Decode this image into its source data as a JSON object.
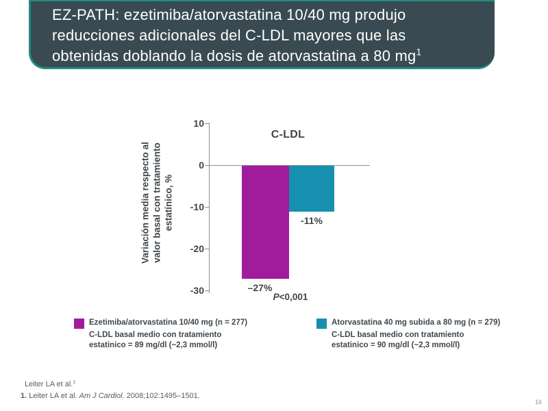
{
  "slide": {
    "page_number": "16"
  },
  "header": {
    "title_line1": "EZ-PATH: ezetimiba/atorvastatina 10/40 mg produjo",
    "title_line2": "reducciones adicionales del C-LDL mayores que las",
    "title_line3": "obtenidas doblando la dosis de atorvastatina a 80 mg",
    "title_superscript": "1"
  },
  "chart_data": {
    "type": "bar",
    "title": "C-LDL",
    "ylabel": "Variación media respecto al\nvalor basal con tratamiento\nestatínico, %",
    "ylim": [
      -30,
      10
    ],
    "yticks": [
      10,
      0,
      -10,
      -20,
      -30
    ],
    "grid": false,
    "legend_position": "bottom",
    "categories": [
      "Ezetimiba/atorvastatina 10/40 mg",
      "Atorvastatina 40 mg subida a 80 mg"
    ],
    "values": [
      -27,
      -11
    ],
    "bar_labels": [
      "–27%",
      "-11%"
    ],
    "bar_colors": [
      "#a11c9d",
      "#1790b0"
    ],
    "p_value_italic": "P",
    "p_value_rest": "<0,001"
  },
  "legend": {
    "items": [
      {
        "color": "#a11c9d",
        "label": "Ezetimiba/atorvastatina 10/40 mg (n = 277)",
        "sublabel": "C-LDL basal medio  con tratamiento\nestatinico = 89 mg/dl (~2,3 mmol/l)"
      },
      {
        "color": "#1790b0",
        "label": "Atorvastatina 40 mg subida a 80 mg (n = 279)",
        "sublabel": "C-LDL basal medio con tratamiento\nestatinico = 90 mg/dl (~2,3 mmol/l)"
      }
    ]
  },
  "footer": {
    "citation": "Leiter LA et al.",
    "citation_superscript": "1",
    "reference_number": "1.",
    "reference_pre": " Leiter LA et al. ",
    "reference_italic": "Am J Cardiol.",
    "reference_post": " 2008;102:1495–1501."
  }
}
